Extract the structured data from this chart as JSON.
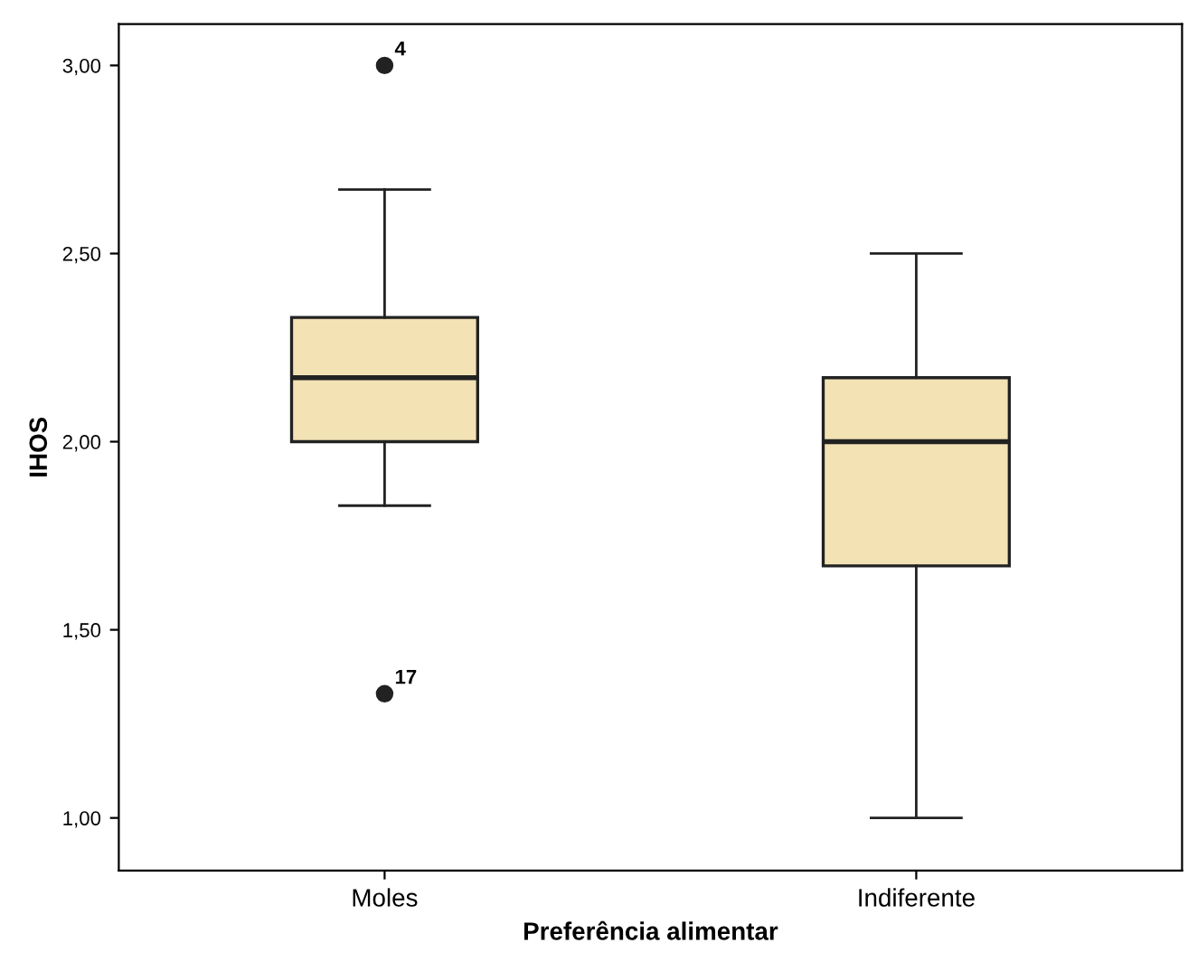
{
  "chart_data": {
    "type": "box",
    "xlabel": "Preferência alimentar",
    "ylabel": "IHOS",
    "categories": [
      "Moles",
      "Indiferente"
    ],
    "boxes": [
      {
        "low": 1.83,
        "q1": 2.0,
        "median": 2.17,
        "q3": 2.33,
        "high": 2.67,
        "outliers": [
          3.0,
          1.33
        ]
      },
      {
        "low": 1.0,
        "q1": 1.67,
        "median": 2.0,
        "q3": 2.17,
        "high": 2.5
      }
    ],
    "color": "#f2e2b4",
    "ylim": [
      0.86,
      3.11
    ],
    "yticks": [
      {
        "value": 1.0,
        "label": "1,00"
      },
      {
        "value": 1.5,
        "label": "1,50"
      },
      {
        "value": 2.0,
        "label": "2,00"
      },
      {
        "value": 2.5,
        "label": "2,50"
      },
      {
        "value": 3.0,
        "label": "3,00"
      }
    ],
    "annotations": [
      "4",
      "17"
    ],
    "grid": false
  }
}
